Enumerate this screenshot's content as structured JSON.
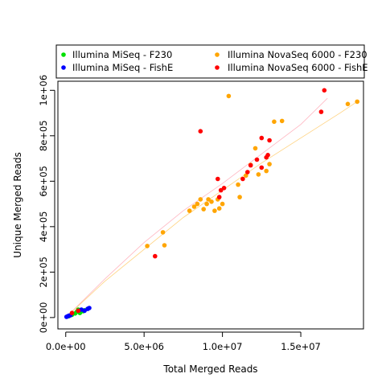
{
  "chart_data": {
    "type": "scatter",
    "xlabel": "Total Merged Reads",
    "ylabel": "Unique Merged Reads",
    "xlim": [
      -500000,
      19000000
    ],
    "ylim": [
      -50000,
      1040000
    ],
    "x_ticks": [
      0,
      5000000,
      10000000,
      15000000
    ],
    "x_tick_labels": [
      "0.0e+00",
      "5.0e+06",
      "1.0e+07",
      "1.5e+07"
    ],
    "y_ticks": [
      0,
      200000,
      400000,
      600000,
      800000,
      1000000
    ],
    "y_tick_labels": [
      "0e+00",
      "2e+05",
      "4e+05",
      "6e+05",
      "8e+05",
      "1e+06"
    ],
    "legend_position": "top",
    "series": [
      {
        "name": "Illumina MiSeq - F230",
        "color": "#00e000",
        "points": [
          [
            200000,
            6000
          ],
          [
            400000,
            12000
          ],
          [
            600000,
            18000
          ],
          [
            700000,
            25000
          ],
          [
            800000,
            35000
          ],
          [
            900000,
            20000
          ],
          [
            1000000,
            30000
          ],
          [
            1100000,
            28000
          ],
          [
            1200000,
            32000
          ]
        ]
      },
      {
        "name": "Illumina MiSeq - FishE",
        "color": "#0000ff",
        "points": [
          [
            50000,
            3000
          ],
          [
            100000,
            5000
          ],
          [
            200000,
            8000
          ],
          [
            300000,
            10000
          ],
          [
            1000000,
            35000
          ],
          [
            1200000,
            30000
          ],
          [
            1400000,
            38000
          ],
          [
            1500000,
            42000
          ]
        ]
      },
      {
        "name": "Illumina NovaSeq 6000 - F230",
        "color": "#ffa500",
        "points": [
          [
            5200000,
            315000
          ],
          [
            6200000,
            375000
          ],
          [
            6300000,
            318000
          ],
          [
            7900000,
            470000
          ],
          [
            8200000,
            488000
          ],
          [
            8400000,
            500000
          ],
          [
            8600000,
            520000
          ],
          [
            8800000,
            477000
          ],
          [
            9000000,
            500000
          ],
          [
            9100000,
            520000
          ],
          [
            9300000,
            510000
          ],
          [
            9500000,
            470000
          ],
          [
            9700000,
            520000
          ],
          [
            9800000,
            480000
          ],
          [
            10000000,
            500000
          ],
          [
            10400000,
            975000
          ],
          [
            11000000,
            585000
          ],
          [
            11100000,
            530000
          ],
          [
            11500000,
            625000
          ],
          [
            11800000,
            672000
          ],
          [
            12100000,
            745000
          ],
          [
            12300000,
            630000
          ],
          [
            12800000,
            645000
          ],
          [
            13000000,
            675000
          ],
          [
            13300000,
            862000
          ],
          [
            13800000,
            865000
          ],
          [
            18000000,
            940000
          ],
          [
            18600000,
            950000
          ]
        ]
      },
      {
        "name": "Illumina NovaSeq 6000 - FishE",
        "color": "#ff0000",
        "points": [
          [
            400000,
            20000
          ],
          [
            800000,
            30000
          ],
          [
            5700000,
            270000
          ],
          [
            8600000,
            820000
          ],
          [
            9700000,
            610000
          ],
          [
            9800000,
            530000
          ],
          [
            9900000,
            560000
          ],
          [
            10100000,
            570000
          ],
          [
            11300000,
            610000
          ],
          [
            11600000,
            640000
          ],
          [
            11800000,
            670000
          ],
          [
            12200000,
            695000
          ],
          [
            12500000,
            660000
          ],
          [
            12500000,
            790000
          ],
          [
            12800000,
            705000
          ],
          [
            12900000,
            715000
          ],
          [
            13000000,
            780000
          ],
          [
            16300000,
            905000
          ],
          [
            16500000,
            1000000
          ]
        ]
      }
    ],
    "trend_lines": [
      {
        "color": "#ffb6c1",
        "points": [
          [
            0,
            0
          ],
          [
            2500000,
            170000
          ],
          [
            5000000,
            330000
          ],
          [
            7500000,
            470000
          ],
          [
            10000000,
            590000
          ],
          [
            12500000,
            720000
          ],
          [
            15000000,
            850000
          ],
          [
            16700000,
            965000
          ]
        ]
      },
      {
        "color": "#ffd27f",
        "points": [
          [
            0,
            0
          ],
          [
            2500000,
            160000
          ],
          [
            5000000,
            300000
          ],
          [
            7500000,
            440000
          ],
          [
            10000000,
            560000
          ],
          [
            12500000,
            680000
          ],
          [
            15000000,
            790000
          ],
          [
            17500000,
            900000
          ],
          [
            18700000,
            955000
          ]
        ]
      }
    ]
  }
}
